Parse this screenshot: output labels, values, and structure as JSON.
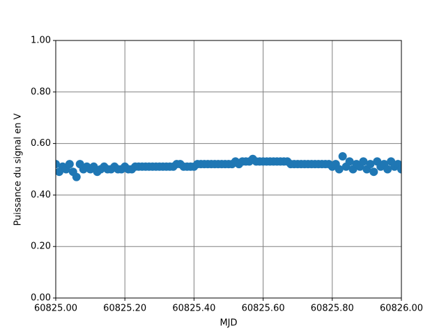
{
  "chart_data": {
    "type": "scatter",
    "xlabel": "MJD",
    "ylabel": "Puissance du signal en V",
    "color": "#1f77b4",
    "grid": true,
    "xlim": [
      60825.0,
      60826.0
    ],
    "xticks": [
      {
        "value": 60825.0,
        "label": "60825.00"
      },
      {
        "value": 60825.2,
        "label": "60825.20"
      },
      {
        "value": 60825.4,
        "label": "60825.40"
      },
      {
        "value": 60825.6,
        "label": "60825.60"
      },
      {
        "value": 60825.8,
        "label": "60825.80"
      },
      {
        "value": 60826.0,
        "label": "60826.00"
      }
    ],
    "ylim": [
      0,
      1
    ],
    "yticks": [
      {
        "value": 0,
        "label": "0.00"
      },
      {
        "value": 0.2,
        "label": "0.20"
      },
      {
        "value": 0.4,
        "label": "0.40"
      },
      {
        "value": 0.6,
        "label": "0.60"
      },
      {
        "value": 0.8,
        "label": "0.80"
      },
      {
        "value": 1,
        "label": "1.00"
      }
    ],
    "x": [
      60825.0,
      60825.01,
      60825.02,
      60825.03,
      60825.04,
      60825.05,
      60825.06,
      60825.07,
      60825.08,
      60825.09,
      60825.1,
      60825.11,
      60825.12,
      60825.13,
      60825.14,
      60825.15,
      60825.16,
      60825.17,
      60825.18,
      60825.19,
      60825.2,
      60825.21,
      60825.22,
      60825.23,
      60825.24,
      60825.25,
      60825.26,
      60825.27,
      60825.28,
      60825.29,
      60825.3,
      60825.31,
      60825.32,
      60825.33,
      60825.34,
      60825.35,
      60825.36,
      60825.37,
      60825.38,
      60825.39,
      60825.4,
      60825.41,
      60825.42,
      60825.43,
      60825.44,
      60825.45,
      60825.46,
      60825.47,
      60825.48,
      60825.49,
      60825.5,
      60825.51,
      60825.52,
      60825.53,
      60825.54,
      60825.55,
      60825.56,
      60825.57,
      60825.58,
      60825.59,
      60825.6,
      60825.61,
      60825.62,
      60825.63,
      60825.64,
      60825.65,
      60825.66,
      60825.67,
      60825.68,
      60825.69,
      60825.7,
      60825.71,
      60825.72,
      60825.73,
      60825.74,
      60825.75,
      60825.76,
      60825.77,
      60825.78,
      60825.79,
      60825.8,
      60825.81,
      60825.82,
      60825.83,
      60825.84,
      60825.85,
      60825.86,
      60825.87,
      60825.88,
      60825.89,
      60825.9,
      60825.91,
      60825.92,
      60825.93,
      60825.94,
      60825.95,
      60825.96,
      60825.97,
      60825.98,
      60825.99,
      60826.0
    ],
    "values": [
      0.52,
      0.49,
      0.51,
      0.5,
      0.52,
      0.49,
      0.47,
      0.52,
      0.5,
      0.51,
      0.5,
      0.51,
      0.49,
      0.5,
      0.51,
      0.5,
      0.5,
      0.51,
      0.5,
      0.5,
      0.51,
      0.5,
      0.5,
      0.51,
      0.51,
      0.51,
      0.51,
      0.51,
      0.51,
      0.51,
      0.51,
      0.51,
      0.51,
      0.51,
      0.51,
      0.52,
      0.52,
      0.51,
      0.51,
      0.51,
      0.51,
      0.52,
      0.52,
      0.52,
      0.52,
      0.52,
      0.52,
      0.52,
      0.52,
      0.52,
      0.52,
      0.52,
      0.53,
      0.52,
      0.53,
      0.53,
      0.53,
      0.54,
      0.53,
      0.53,
      0.53,
      0.53,
      0.53,
      0.53,
      0.53,
      0.53,
      0.53,
      0.53,
      0.52,
      0.52,
      0.52,
      0.52,
      0.52,
      0.52,
      0.52,
      0.52,
      0.52,
      0.52,
      0.52,
      0.52,
      0.51,
      0.52,
      0.5,
      0.55,
      0.51,
      0.53,
      0.5,
      0.52,
      0.51,
      0.53,
      0.5,
      0.52,
      0.49,
      0.53,
      0.51,
      0.52,
      0.5,
      0.53,
      0.51,
      0.52,
      0.5
    ]
  }
}
